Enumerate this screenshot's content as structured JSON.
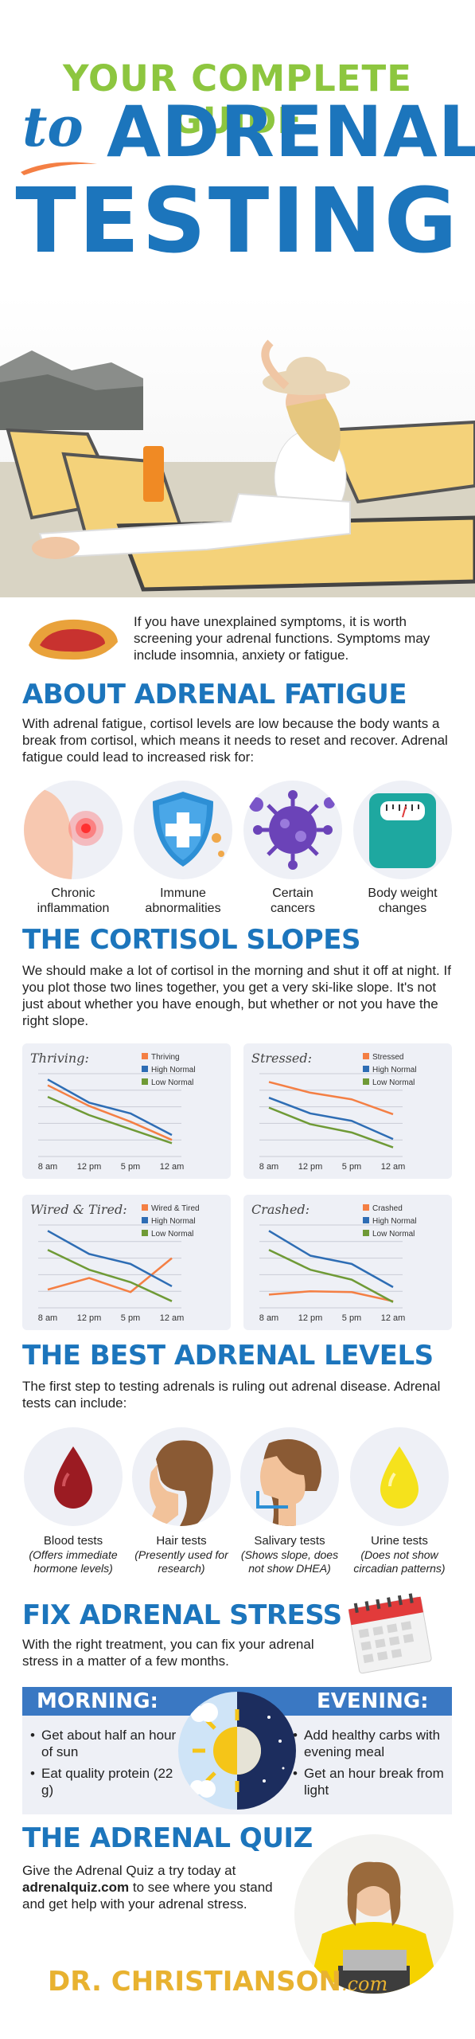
{
  "header": {
    "title_line1": "YOUR COMPLETE GUIDE",
    "title_to": "to",
    "title_line2": "ADRENAL",
    "title_line3": "TESTING"
  },
  "intro": {
    "text": "If you have unexplained symptoms, it is worth screening your adrenal functions. Symptoms may include insomnia, anxiety or fatigue."
  },
  "about": {
    "heading": "ABOUT ADRENAL FATIGUE",
    "text": "With adrenal fatigue, cortisol levels are low because the body wants a break from cortisol, which means it needs to reset and recover. Adrenal fatigue could lead to increased risk for:",
    "risks": [
      {
        "line1": "Chronic",
        "line2": "inflammation",
        "icon": "inflammation-icon"
      },
      {
        "line1": "Immune",
        "line2": "abnormalities",
        "icon": "shield-icon"
      },
      {
        "line1": "Certain",
        "line2": "cancers",
        "icon": "cancer-cell-icon"
      },
      {
        "line1": "Body weight",
        "line2": "changes",
        "icon": "scale-icon"
      }
    ]
  },
  "slopes": {
    "heading": "THE CORTISOL SLOPES",
    "text": "We should make a lot of cortisol in the morning and shut it off at night. If you plot those two lines together, you get a very ski-like slope. It's not just about whether you have enough, but whether or not you have the right slope."
  },
  "chart_data": [
    {
      "type": "line",
      "title": "Thriving:",
      "categories": [
        "8 am",
        "12 pm",
        "5 pm",
        "12 am"
      ],
      "ylim": [
        0,
        10
      ],
      "series": [
        {
          "name": "Thriving",
          "color": "#f47f44",
          "values": [
            8.6,
            6.1,
            4.2,
            2.0
          ]
        },
        {
          "name": "High Normal",
          "color": "#2e6db4",
          "values": [
            9.3,
            6.5,
            5.2,
            2.6
          ]
        },
        {
          "name": "Low Normal",
          "color": "#6f9a36",
          "values": [
            7.2,
            5.0,
            3.3,
            1.6
          ]
        }
      ]
    },
    {
      "type": "line",
      "title": "Stressed:",
      "categories": [
        "8 am",
        "12 pm",
        "5 pm",
        "12 am"
      ],
      "ylim": [
        0,
        10
      ],
      "series": [
        {
          "name": "Stressed",
          "color": "#f47f44",
          "values": [
            9.0,
            7.7,
            6.9,
            5.1
          ]
        },
        {
          "name": "High Normal",
          "color": "#2e6db4",
          "values": [
            7.1,
            5.2,
            4.3,
            2.1
          ]
        },
        {
          "name": "Low Normal",
          "color": "#6f9a36",
          "values": [
            5.9,
            3.9,
            2.9,
            1.1
          ]
        }
      ]
    },
    {
      "type": "line",
      "title": "Wired & Tired:",
      "categories": [
        "8 am",
        "12 pm",
        "5 pm",
        "12 am"
      ],
      "ylim": [
        0,
        10
      ],
      "series": [
        {
          "name": "Wired & Tired",
          "color": "#f47f44",
          "values": [
            2.2,
            3.6,
            1.9,
            6.0
          ]
        },
        {
          "name": "High Normal",
          "color": "#2e6db4",
          "values": [
            9.3,
            6.5,
            5.3,
            2.6
          ]
        },
        {
          "name": "Low Normal",
          "color": "#6f9a36",
          "values": [
            7.0,
            4.6,
            3.1,
            0.8
          ]
        }
      ]
    },
    {
      "type": "line",
      "title": "Crashed:",
      "categories": [
        "8 am",
        "12 pm",
        "5 pm",
        "12 am"
      ],
      "ylim": [
        0,
        10
      ],
      "series": [
        {
          "name": "Crashed",
          "color": "#f47f44",
          "values": [
            1.6,
            2.0,
            1.9,
            0.8
          ]
        },
        {
          "name": "High Normal",
          "color": "#2e6db4",
          "values": [
            9.3,
            6.3,
            5.3,
            2.5
          ]
        },
        {
          "name": "Low Normal",
          "color": "#6f9a36",
          "values": [
            7.0,
            4.6,
            3.4,
            0.7
          ]
        }
      ]
    }
  ],
  "levels": {
    "heading": "THE BEST ADRENAL LEVELS",
    "text": "The first step to testing adrenals is ruling out adrenal disease. Adrenal tests can include:",
    "tests": [
      {
        "name": "Blood tests",
        "note": "(Offers immediate hormone levels)",
        "icon": "blood-drop-icon"
      },
      {
        "name": "Hair tests",
        "note": "(Presently used for research)",
        "icon": "hair-icon"
      },
      {
        "name": "Salivary tests",
        "note": "(Shows slope, does not show DHEA)",
        "icon": "saliva-icon"
      },
      {
        "name": "Urine tests",
        "note": "(Does not show circadian patterns)",
        "icon": "urine-drop-icon"
      }
    ]
  },
  "fix": {
    "heading": "FIX ADRENAL STRESS",
    "text": "With the right treatment, you can fix your adrenal stress in a matter of a few months.",
    "morning": {
      "heading": "MORNING:",
      "items": [
        "Get about half an hour of sun",
        "Eat quality protein (22 g)"
      ]
    },
    "evening": {
      "heading": "EVENING:",
      "items": [
        "Add healthy carbs with evening meal",
        "Get an hour break from light"
      ]
    }
  },
  "quiz": {
    "heading": "THE ADRENAL QUIZ",
    "text_before": "Give the Adrenal Quiz a try today at ",
    "link": "adrenalquiz.com",
    "text_after": " to see where you stand and get help with your adrenal stress."
  },
  "footer": {
    "brand": "DR. CHRISTIANSON",
    "brand_suffix": ".com"
  },
  "colors": {
    "blue": "#1c75bc",
    "green": "#8dc63f",
    "gold": "#e8b230",
    "panel": "#eef0f6"
  }
}
